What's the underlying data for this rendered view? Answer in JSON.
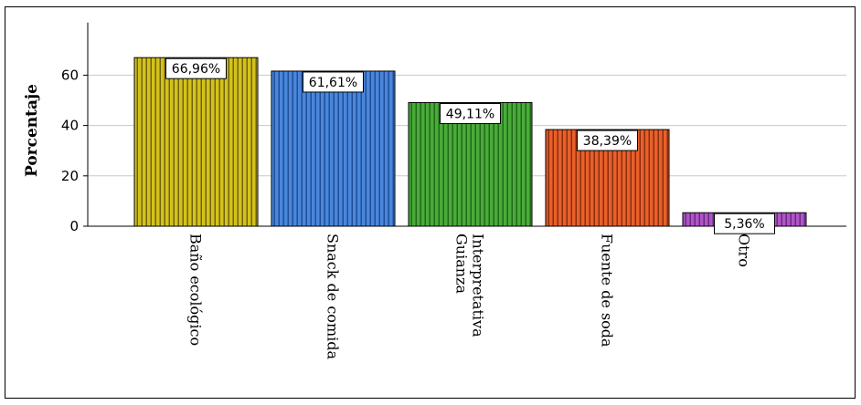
{
  "chart_data": {
    "type": "bar",
    "ylabel": "Porcentaje",
    "xlabel": "",
    "title": "",
    "ylim": [
      0,
      78
    ],
    "yticks": [
      0,
      20,
      40,
      60
    ],
    "grid": true,
    "bar_pattern": "vertical-stripes",
    "categories": [
      [
        "Baño ecológico"
      ],
      [
        "Snack de comida"
      ],
      [
        "Guianza",
        "Interpretativa"
      ],
      [
        "Fuente de soda"
      ],
      [
        "Otro"
      ]
    ],
    "values": [
      66.96,
      61.61,
      49.11,
      38.39,
      5.36
    ],
    "data_labels": [
      "66,96%",
      "61,61%",
      "49,11%",
      "38,39%",
      "5,36%"
    ],
    "colors": [
      "#d4c21c",
      "#4a86dc",
      "#4aab3a",
      "#e8602c",
      "#b055c8"
    ],
    "stripe_colors": [
      "#6e6410",
      "#1f4f96",
      "#1f6a18",
      "#8a2e0c",
      "#6a2a80"
    ]
  }
}
